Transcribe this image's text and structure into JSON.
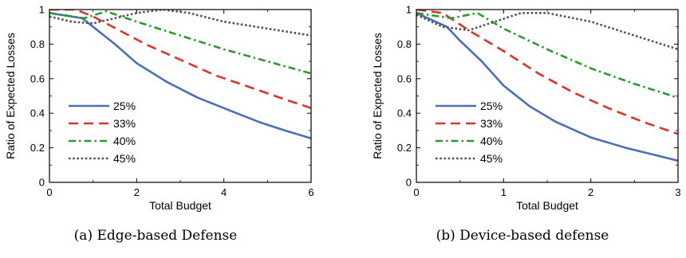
{
  "chart_data": [
    {
      "type": "line",
      "panel": "a",
      "caption": "(a) Edge-based Defense",
      "xlabel": "Total Budget",
      "ylabel": "Ratio of Expected Losses",
      "xlim": [
        0,
        6
      ],
      "ylim": [
        0,
        1
      ],
      "xticks": [
        0,
        2,
        4,
        6
      ],
      "yticks": [
        0,
        0.2,
        0.4,
        0.6,
        0.8,
        1
      ],
      "ytick_labels": [
        "0",
        "0.2",
        "0.4",
        "0.6",
        "0.8",
        "1"
      ],
      "grid": false,
      "legend_position": "lower-left",
      "series": [
        {
          "name": "25%",
          "color": "#4a6fb5",
          "dash": "solid",
          "x": [
            0,
            0.75,
            1.0,
            1.5,
            2.0,
            2.7,
            3.4,
            4.1,
            4.8,
            5.4,
            6.0
          ],
          "y": [
            0.98,
            0.95,
            0.9,
            0.8,
            0.69,
            0.58,
            0.49,
            0.42,
            0.35,
            0.3,
            0.255
          ]
        },
        {
          "name": "33%",
          "color": "#e0322a",
          "dash": "dashed",
          "x": [
            0,
            0.6,
            1.0,
            1.6,
            2.2,
            3.0,
            3.8,
            4.6,
            5.4,
            6.0
          ],
          "y": [
            1.0,
            1.0,
            0.96,
            0.88,
            0.8,
            0.71,
            0.62,
            0.55,
            0.48,
            0.43
          ]
        },
        {
          "name": "40%",
          "color": "#2d9a2d",
          "dash": "dashdot",
          "x": [
            0,
            0.8,
            1.3,
            2.0,
            3.0,
            4.0,
            5.0,
            6.0
          ],
          "y": [
            0.98,
            0.95,
            0.99,
            0.93,
            0.85,
            0.77,
            0.7,
            0.63
          ]
        },
        {
          "name": "45%",
          "color": "#555555",
          "dash": "dotted",
          "x": [
            0,
            0.5,
            1.0,
            1.5,
            2.0,
            2.6,
            3.2,
            4.0,
            5.0,
            6.0
          ],
          "y": [
            0.96,
            0.93,
            0.92,
            0.95,
            0.98,
            1.0,
            0.98,
            0.93,
            0.89,
            0.85
          ]
        }
      ]
    },
    {
      "type": "line",
      "panel": "b",
      "caption": "(b) Device-based defense",
      "xlabel": "Total Budget",
      "ylabel": "Ratio of Expected Losses",
      "xlim": [
        0,
        3
      ],
      "ylim": [
        0,
        1
      ],
      "xticks": [
        0,
        1,
        2,
        3
      ],
      "yticks": [
        0,
        0.2,
        0.4,
        0.6,
        0.8,
        1
      ],
      "ytick_labels": [
        "0",
        "0.2",
        "0.4",
        "0.6",
        "0.8",
        "1"
      ],
      "grid": false,
      "legend_position": "lower-left",
      "series": [
        {
          "name": "25%",
          "color": "#4a6fb5",
          "dash": "solid",
          "x": [
            0,
            0.35,
            0.5,
            0.75,
            1.0,
            1.3,
            1.6,
            2.0,
            2.4,
            2.8,
            3.0
          ],
          "y": [
            0.98,
            0.9,
            0.82,
            0.7,
            0.56,
            0.44,
            0.35,
            0.26,
            0.2,
            0.15,
            0.125
          ]
        },
        {
          "name": "33%",
          "color": "#e0322a",
          "dash": "dashed",
          "x": [
            0,
            0.3,
            0.6,
            1.0,
            1.4,
            1.8,
            2.2,
            2.6,
            3.0
          ],
          "y": [
            1.0,
            0.98,
            0.88,
            0.76,
            0.63,
            0.52,
            0.43,
            0.35,
            0.28
          ]
        },
        {
          "name": "40%",
          "color": "#2d9a2d",
          "dash": "dashdot",
          "x": [
            0,
            0.4,
            0.7,
            1.0,
            1.5,
            2.0,
            2.5,
            3.0
          ],
          "y": [
            0.98,
            0.95,
            0.98,
            0.89,
            0.77,
            0.66,
            0.57,
            0.49
          ]
        },
        {
          "name": "45%",
          "color": "#555555",
          "dash": "dotted",
          "x": [
            0,
            0.3,
            0.6,
            0.9,
            1.2,
            1.5,
            2.0,
            2.5,
            3.0
          ],
          "y": [
            0.97,
            0.9,
            0.88,
            0.93,
            0.98,
            0.98,
            0.93,
            0.85,
            0.77
          ]
        }
      ]
    }
  ]
}
